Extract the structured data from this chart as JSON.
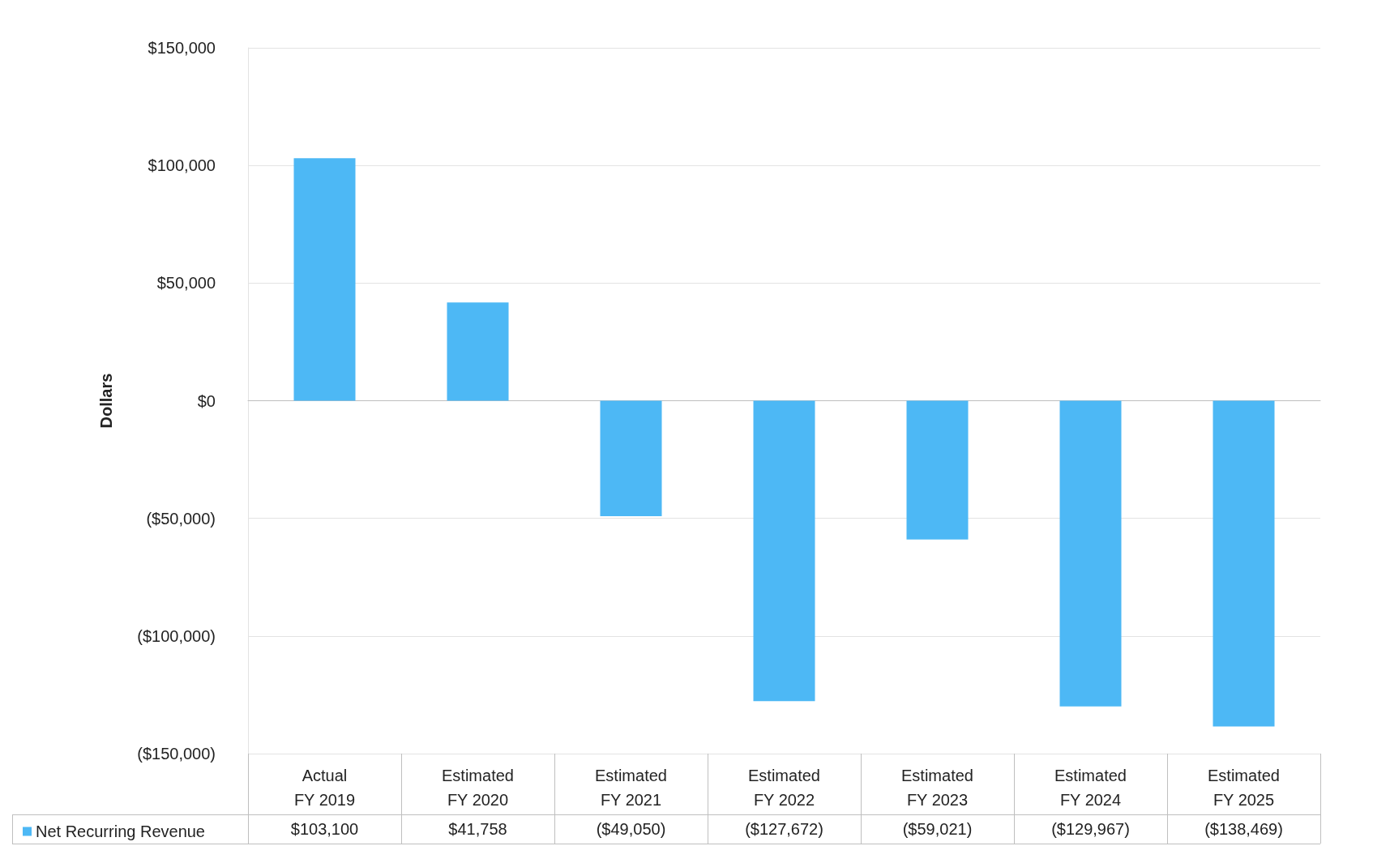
{
  "chart_data": {
    "type": "bar",
    "ylabel": "Dollars",
    "categories": [
      "Actual\nFY 2019",
      "Estimated\nFY 2020",
      "Estimated\nFY 2021",
      "Estimated\nFY 2022",
      "Estimated\nFY 2023",
      "Estimated\nFY 2024",
      "Estimated\nFY 2025"
    ],
    "series": [
      {
        "name": "Net Recurring Revenue",
        "color": "#4db8f5",
        "values": [
          103100,
          41758,
          -49050,
          -127672,
          -59021,
          -129967,
          -138469
        ],
        "value_labels": [
          "$103,100",
          "$41,758",
          "($49,050)",
          "($127,672)",
          "($59,021)",
          "($129,967)",
          "($138,469)"
        ]
      }
    ],
    "ylim": [
      -150000,
      150000
    ],
    "yticks": [
      {
        "value": -150000,
        "label": "($150,000)"
      },
      {
        "value": -100000,
        "label": "($100,000)"
      },
      {
        "value": -50000,
        "label": "($50,000)"
      },
      {
        "value": 0,
        "label": "$0"
      },
      {
        "value": 50000,
        "label": "$50,000"
      },
      {
        "value": 100000,
        "label": "$100,000"
      },
      {
        "value": 150000,
        "label": "$150,000"
      }
    ],
    "grid": "y",
    "legend": "bottom left"
  }
}
